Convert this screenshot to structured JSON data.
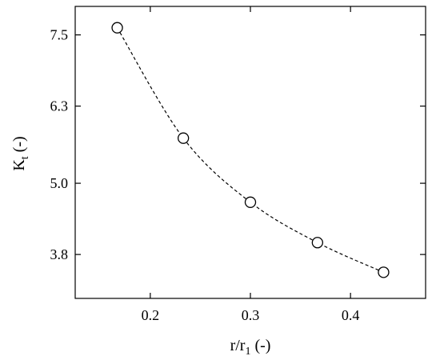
{
  "chart_data": {
    "type": "scatter",
    "title": "",
    "xlabel": {
      "main": "r/r",
      "sub": "1",
      "suffix": " (-)"
    },
    "ylabel": {
      "main": "K",
      "sub": "t",
      "suffix": " (-)"
    },
    "xlim": [
      0.125,
      0.475
    ],
    "ylim": [
      3.06,
      7.98
    ],
    "xticks": [
      0.2,
      0.3,
      0.4
    ],
    "xtick_labels": [
      "0.2",
      "0.3",
      "0.4"
    ],
    "yticks": [
      3.8,
      5.0,
      6.3,
      7.5
    ],
    "ytick_labels": [
      "3.8",
      "5.0",
      "6.3",
      "7.5"
    ],
    "grid": false,
    "legend": "none",
    "series": [
      {
        "marker": "open-circle",
        "trend_line": "dashed",
        "x": [
          0.167,
          0.233,
          0.3,
          0.367,
          0.433
        ],
        "y": [
          7.62,
          5.76,
          4.68,
          4.0,
          3.5
        ]
      }
    ]
  }
}
